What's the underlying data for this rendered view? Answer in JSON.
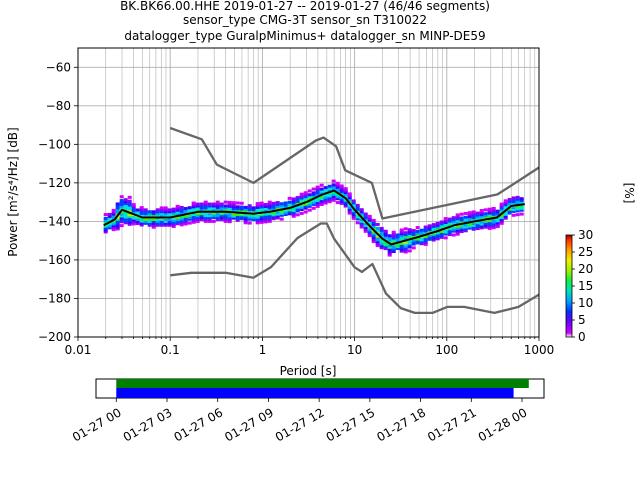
{
  "header": {
    "line1": "BK.BK66.00.HHE   2019-01-27 -- 2019-01-27  (46/46 segments)",
    "line2": "sensor_type CMG-3T sensor_sn T310022",
    "line3": "datalogger_type GuralpMinimus+ datalogger_sn MINP-DE59"
  },
  "chart_data": [
    {
      "type": "heatmap",
      "xlabel": "Period [s]",
      "ylabel": "Power [m²/s⁴/Hz] [dB]",
      "xscale": "log",
      "xlim": [
        0.01,
        1000
      ],
      "ylim": [
        -200,
        -50
      ],
      "x_tick_labels": [
        "0.01",
        "0.1",
        "1",
        "10",
        "100",
        "1000"
      ],
      "y_ticks": [
        -200,
        -180,
        -160,
        -140,
        -120,
        -100,
        -80,
        -60
      ],
      "grid": true,
      "colorbar": {
        "label": "[%]",
        "ticks": [
          0,
          5,
          10,
          15,
          20,
          25,
          30
        ],
        "range": [
          0,
          30
        ]
      },
      "series": [
        {
          "role": "mode",
          "color": "#000000",
          "x": [
            0.019,
            0.025,
            0.03,
            0.05,
            0.1,
            0.2,
            0.4,
            0.8,
            1.2,
            2,
            3,
            4.5,
            6,
            8,
            10,
            15,
            20,
            25,
            35,
            50,
            80,
            120,
            200,
            350,
            500,
            700
          ],
          "y": [
            -142,
            -139,
            -134,
            -138,
            -138,
            -135,
            -135,
            -136,
            -135,
            -133,
            -130,
            -126,
            -124,
            -128,
            -134,
            -143,
            -149,
            -152,
            -150,
            -148,
            -145,
            -142,
            -140,
            -138,
            -132,
            -131
          ]
        },
        {
          "role": "high noise model",
          "color": "#666666",
          "x": [
            0.1,
            0.22,
            0.32,
            0.8,
            3.8,
            4.6,
            6.3,
            7.9,
            15.4,
            20,
            354.8,
            1000
          ],
          "y": [
            -91.5,
            -97.4,
            -110.5,
            -120,
            -98,
            -96.5,
            -101,
            -113.5,
            -120,
            -138.5,
            -126,
            -112
          ]
        },
        {
          "role": "low noise model",
          "color": "#666666",
          "x": [
            0.1,
            0.17,
            0.4,
            0.8,
            1.24,
            2.4,
            4.3,
            5,
            6,
            10,
            12,
            15.6,
            21.9,
            31.6,
            45,
            70,
            101,
            154,
            328,
            600,
            1000
          ],
          "y": [
            -168,
            -166.7,
            -166.7,
            -169.2,
            -163.7,
            -148.6,
            -141.1,
            -141.1,
            -149,
            -163.8,
            -166.2,
            -162.1,
            -177.5,
            -185,
            -187.5,
            -187.5,
            -184.4,
            -184.4,
            -187.5,
            -184.4,
            -178
          ]
        }
      ]
    },
    {
      "type": "timeline",
      "x_tick_labels": [
        "01-27 00",
        "01-27 03",
        "01-27 06",
        "01-27 09",
        "01-27 12",
        "01-27 15",
        "01-27 18",
        "01-27 21",
        "01-28 00"
      ],
      "xlim_hours": [
        -1.2,
        25.3
      ],
      "series": [
        {
          "role": "data available",
          "color": "#008000",
          "start_hour": 0,
          "end_hour": 24.4
        },
        {
          "role": "psd segments used",
          "color": "#0000ff",
          "start_hour": 0,
          "end_hour": 23.5
        }
      ]
    }
  ]
}
